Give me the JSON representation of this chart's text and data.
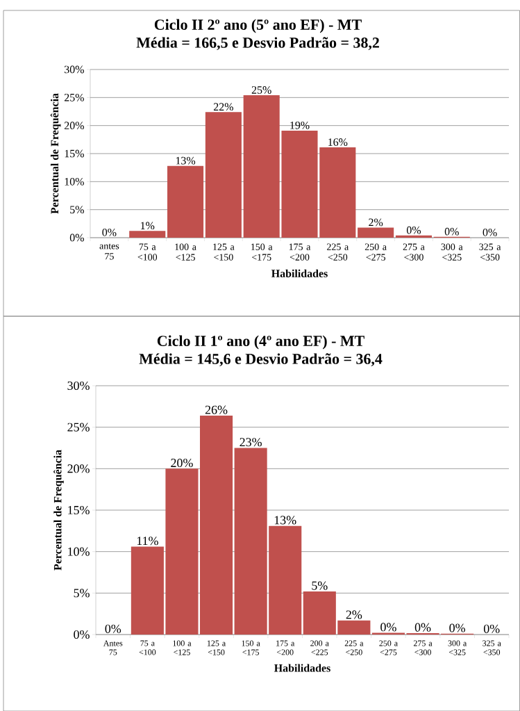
{
  "chart_data": [
    {
      "type": "bar",
      "title": "Ciclo II 2º ano (5º ano EF) - MT",
      "subtitle": "Média = 166,5 e Desvio Padrão = 38,2",
      "xlabel": "Habilidades",
      "ylabel": "Percentual de Frequência",
      "categories": [
        "antes 75",
        "75 a <100",
        "100 a <125",
        "125 a <150",
        "150 a <175",
        "175 a <200",
        "225 a <250",
        "250 a <275",
        "275 a <300",
        "300 a <325",
        "325 a <350"
      ],
      "values": [
        0,
        1.2,
        12.8,
        22.4,
        25.4,
        19.1,
        16.1,
        1.8,
        0.4,
        0.15,
        0
      ],
      "value_labels": [
        "0%",
        "1%",
        "13%",
        "22%",
        "25%",
        "19%",
        "16%",
        "2%",
        "0%",
        "0%",
        "0%"
      ],
      "color": "#c0504d",
      "ylim": [
        0,
        30
      ],
      "yticks": [
        {
          "value": 0,
          "label": "0%"
        },
        {
          "value": 5,
          "label": "5%"
        },
        {
          "value": 10,
          "label": "10%"
        },
        {
          "value": 15,
          "label": "15%"
        },
        {
          "value": 20,
          "label": "20%"
        },
        {
          "value": 25,
          "label": "25%"
        },
        {
          "value": 30,
          "label": "30%"
        }
      ],
      "grid": "y"
    },
    {
      "type": "bar",
      "title": "Ciclo II 1º ano (4º ano EF) - MT",
      "subtitle": "Média = 145,6 e Desvio Padrão = 36,4",
      "xlabel": "Habilidades",
      "ylabel": "Percentual de Frequência",
      "categories": [
        "Antes 75",
        "75 a <100",
        "100 a <125",
        "125 a <150",
        "150 a <175",
        "175 a <200",
        "200 a <225",
        "225 a <250",
        "250 a <275",
        "275 a <300",
        "300 a <325",
        "325 a <350"
      ],
      "values": [
        0,
        10.6,
        20.0,
        26.4,
        22.5,
        13.1,
        5.2,
        1.7,
        0.2,
        0.17,
        0.1,
        0
      ],
      "value_labels": [
        "0%",
        "11%",
        "20%",
        "26%",
        "23%",
        "13%",
        "5%",
        "2%",
        "0%",
        "0%",
        "0%",
        "0%"
      ],
      "color": "#c0504d",
      "ylim": [
        0,
        30
      ],
      "yticks": [
        {
          "value": 0,
          "label": "0%"
        },
        {
          "value": 5,
          "label": "5%"
        },
        {
          "value": 10,
          "label": "10%"
        },
        {
          "value": 15,
          "label": "15%"
        },
        {
          "value": 20,
          "label": "20%"
        },
        {
          "value": 25,
          "label": "25%"
        },
        {
          "value": 30,
          "label": "30%"
        }
      ],
      "grid": "y"
    }
  ]
}
